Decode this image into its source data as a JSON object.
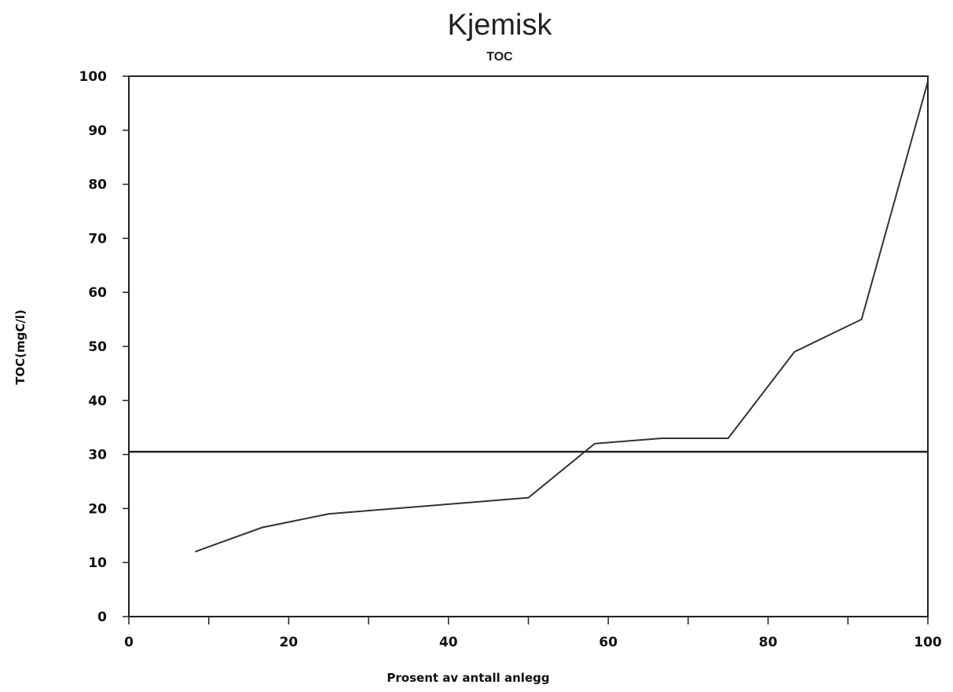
{
  "chart_data": {
    "type": "line",
    "title": "Kjemisk",
    "subtitle": "TOC",
    "xlabel": "Prosent av antall anlegg",
    "ylabel": "TOC(mgC/l)",
    "xlim": [
      0,
      100
    ],
    "ylim": [
      0,
      100
    ],
    "xticks": [
      0,
      20,
      40,
      60,
      80,
      100
    ],
    "yticks": [
      0,
      10,
      20,
      30,
      40,
      50,
      60,
      70,
      80,
      90,
      100
    ],
    "grid": false,
    "series": [
      {
        "x": [
          8.3,
          16.7,
          25,
          33.3,
          41.7,
          50,
          58.3,
          66.7,
          75,
          83.3,
          91.7,
          100
        ],
        "y": [
          12,
          16.5,
          19,
          20,
          21,
          22,
          32,
          33,
          33,
          49,
          55,
          99
        ]
      }
    ],
    "reference_line": {
      "y": 30.5
    }
  }
}
